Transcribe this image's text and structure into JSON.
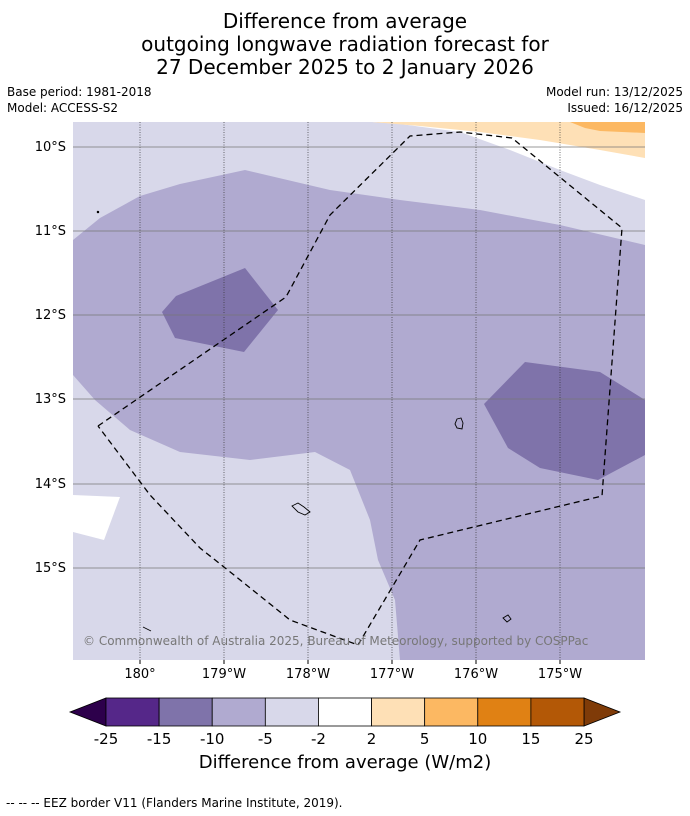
{
  "title": {
    "line1": "Difference from average",
    "line2": "outgoing longwave radiation forecast for",
    "line3": "27 December 2025 to 2 January 2026"
  },
  "meta": {
    "base_period": "Base period: 1981-2018",
    "model": "Model: ACCESS-S2",
    "model_run": "Model run: 13/12/2025",
    "issued": "Issued: 16/12/2025"
  },
  "map": {
    "lat_labels": [
      "10°S",
      "11°S",
      "12°S",
      "13°S",
      "14°S",
      "15°S"
    ],
    "lon_labels": [
      "180°",
      "179°W",
      "178°W",
      "177°W",
      "176°W",
      "175°W"
    ],
    "copyright": "© Commonwealth of Australia 2025, Bureau of Meteorology, supported by COSPPac",
    "colors": {
      "c_neg15": "#7f73aa",
      "c_neg10": "#b0aad0",
      "c_neg5": "#d8d8ea",
      "c_neutral": "#ffffff",
      "c_pos2": "#fee0b6",
      "c_pos5": "#fcb862"
    }
  },
  "colorbar": {
    "ticks": [
      "-25",
      "-15",
      "-10",
      "-5",
      "-2",
      "2",
      "5",
      "10",
      "15",
      "25"
    ],
    "colors": [
      "#552789",
      "#7f73aa",
      "#b0aad0",
      "#d8d8ea",
      "#ffffff",
      "#fee0b6",
      "#fcb862",
      "#e08114",
      "#b35806"
    ],
    "under_color": "#2d004b",
    "over_color": "#7f3b08",
    "label": "Difference from average (W/m2)"
  },
  "footer": {
    "legend_text": "--  --  -- EEZ border V11 (Flanders Marine Institute, 2019)."
  }
}
